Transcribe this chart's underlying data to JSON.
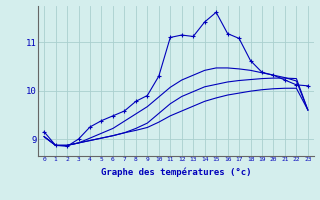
{
  "xlabel": "Graphe des températures (°c)",
  "ylabel": "",
  "background_color": "#d4eeed",
  "grid_color": "#aacfcf",
  "line_color": "#0000bb",
  "xlim": [
    -0.5,
    23.5
  ],
  "ylim": [
    8.65,
    11.75
  ],
  "yticks": [
    9,
    10,
    11
  ],
  "xticks": [
    0,
    1,
    2,
    3,
    4,
    5,
    6,
    7,
    8,
    9,
    10,
    11,
    12,
    13,
    14,
    15,
    16,
    17,
    18,
    19,
    20,
    21,
    22,
    23
  ],
  "series": {
    "line1": {
      "x": [
        0,
        1,
        2,
        3,
        4,
        5,
        6,
        7,
        8,
        9,
        10,
        11,
        12,
        13,
        14,
        15,
        16,
        17,
        18,
        19,
        20,
        21,
        22,
        23
      ],
      "y": [
        9.15,
        8.87,
        8.85,
        9.0,
        9.25,
        9.38,
        9.48,
        9.58,
        9.78,
        9.9,
        10.3,
        11.1,
        11.15,
        11.12,
        11.42,
        11.62,
        11.18,
        11.08,
        10.62,
        10.38,
        10.32,
        10.22,
        10.12,
        10.1
      ],
      "marker": "+"
    },
    "line2": {
      "x": [
        0,
        1,
        2,
        3,
        4,
        5,
        6,
        7,
        8,
        9,
        10,
        11,
        12,
        13,
        14,
        15,
        16,
        17,
        18,
        19,
        20,
        21,
        22,
        23
      ],
      "y": [
        9.05,
        8.87,
        8.87,
        8.92,
        8.97,
        9.02,
        9.07,
        9.13,
        9.18,
        9.24,
        9.35,
        9.48,
        9.58,
        9.68,
        9.78,
        9.85,
        9.91,
        9.95,
        9.99,
        10.02,
        10.04,
        10.05,
        10.05,
        9.6
      ],
      "marker": null
    },
    "line3": {
      "x": [
        0,
        1,
        2,
        3,
        4,
        5,
        6,
        7,
        8,
        9,
        10,
        11,
        12,
        13,
        14,
        15,
        16,
        17,
        18,
        19,
        20,
        21,
        22,
        23
      ],
      "y": [
        9.05,
        8.87,
        8.87,
        8.92,
        8.97,
        9.02,
        9.07,
        9.13,
        9.22,
        9.33,
        9.53,
        9.73,
        9.88,
        9.98,
        10.08,
        10.13,
        10.18,
        10.21,
        10.23,
        10.25,
        10.26,
        10.26,
        10.25,
        9.6
      ],
      "marker": null
    },
    "line4": {
      "x": [
        0,
        1,
        2,
        3,
        4,
        5,
        6,
        7,
        8,
        9,
        10,
        11,
        12,
        13,
        14,
        15,
        16,
        17,
        18,
        19,
        20,
        21,
        22,
        23
      ],
      "y": [
        9.05,
        8.87,
        8.87,
        8.92,
        9.02,
        9.12,
        9.22,
        9.37,
        9.52,
        9.67,
        9.87,
        10.07,
        10.22,
        10.32,
        10.42,
        10.47,
        10.47,
        10.45,
        10.42,
        10.37,
        10.32,
        10.27,
        10.2,
        9.6
      ],
      "marker": null
    }
  }
}
